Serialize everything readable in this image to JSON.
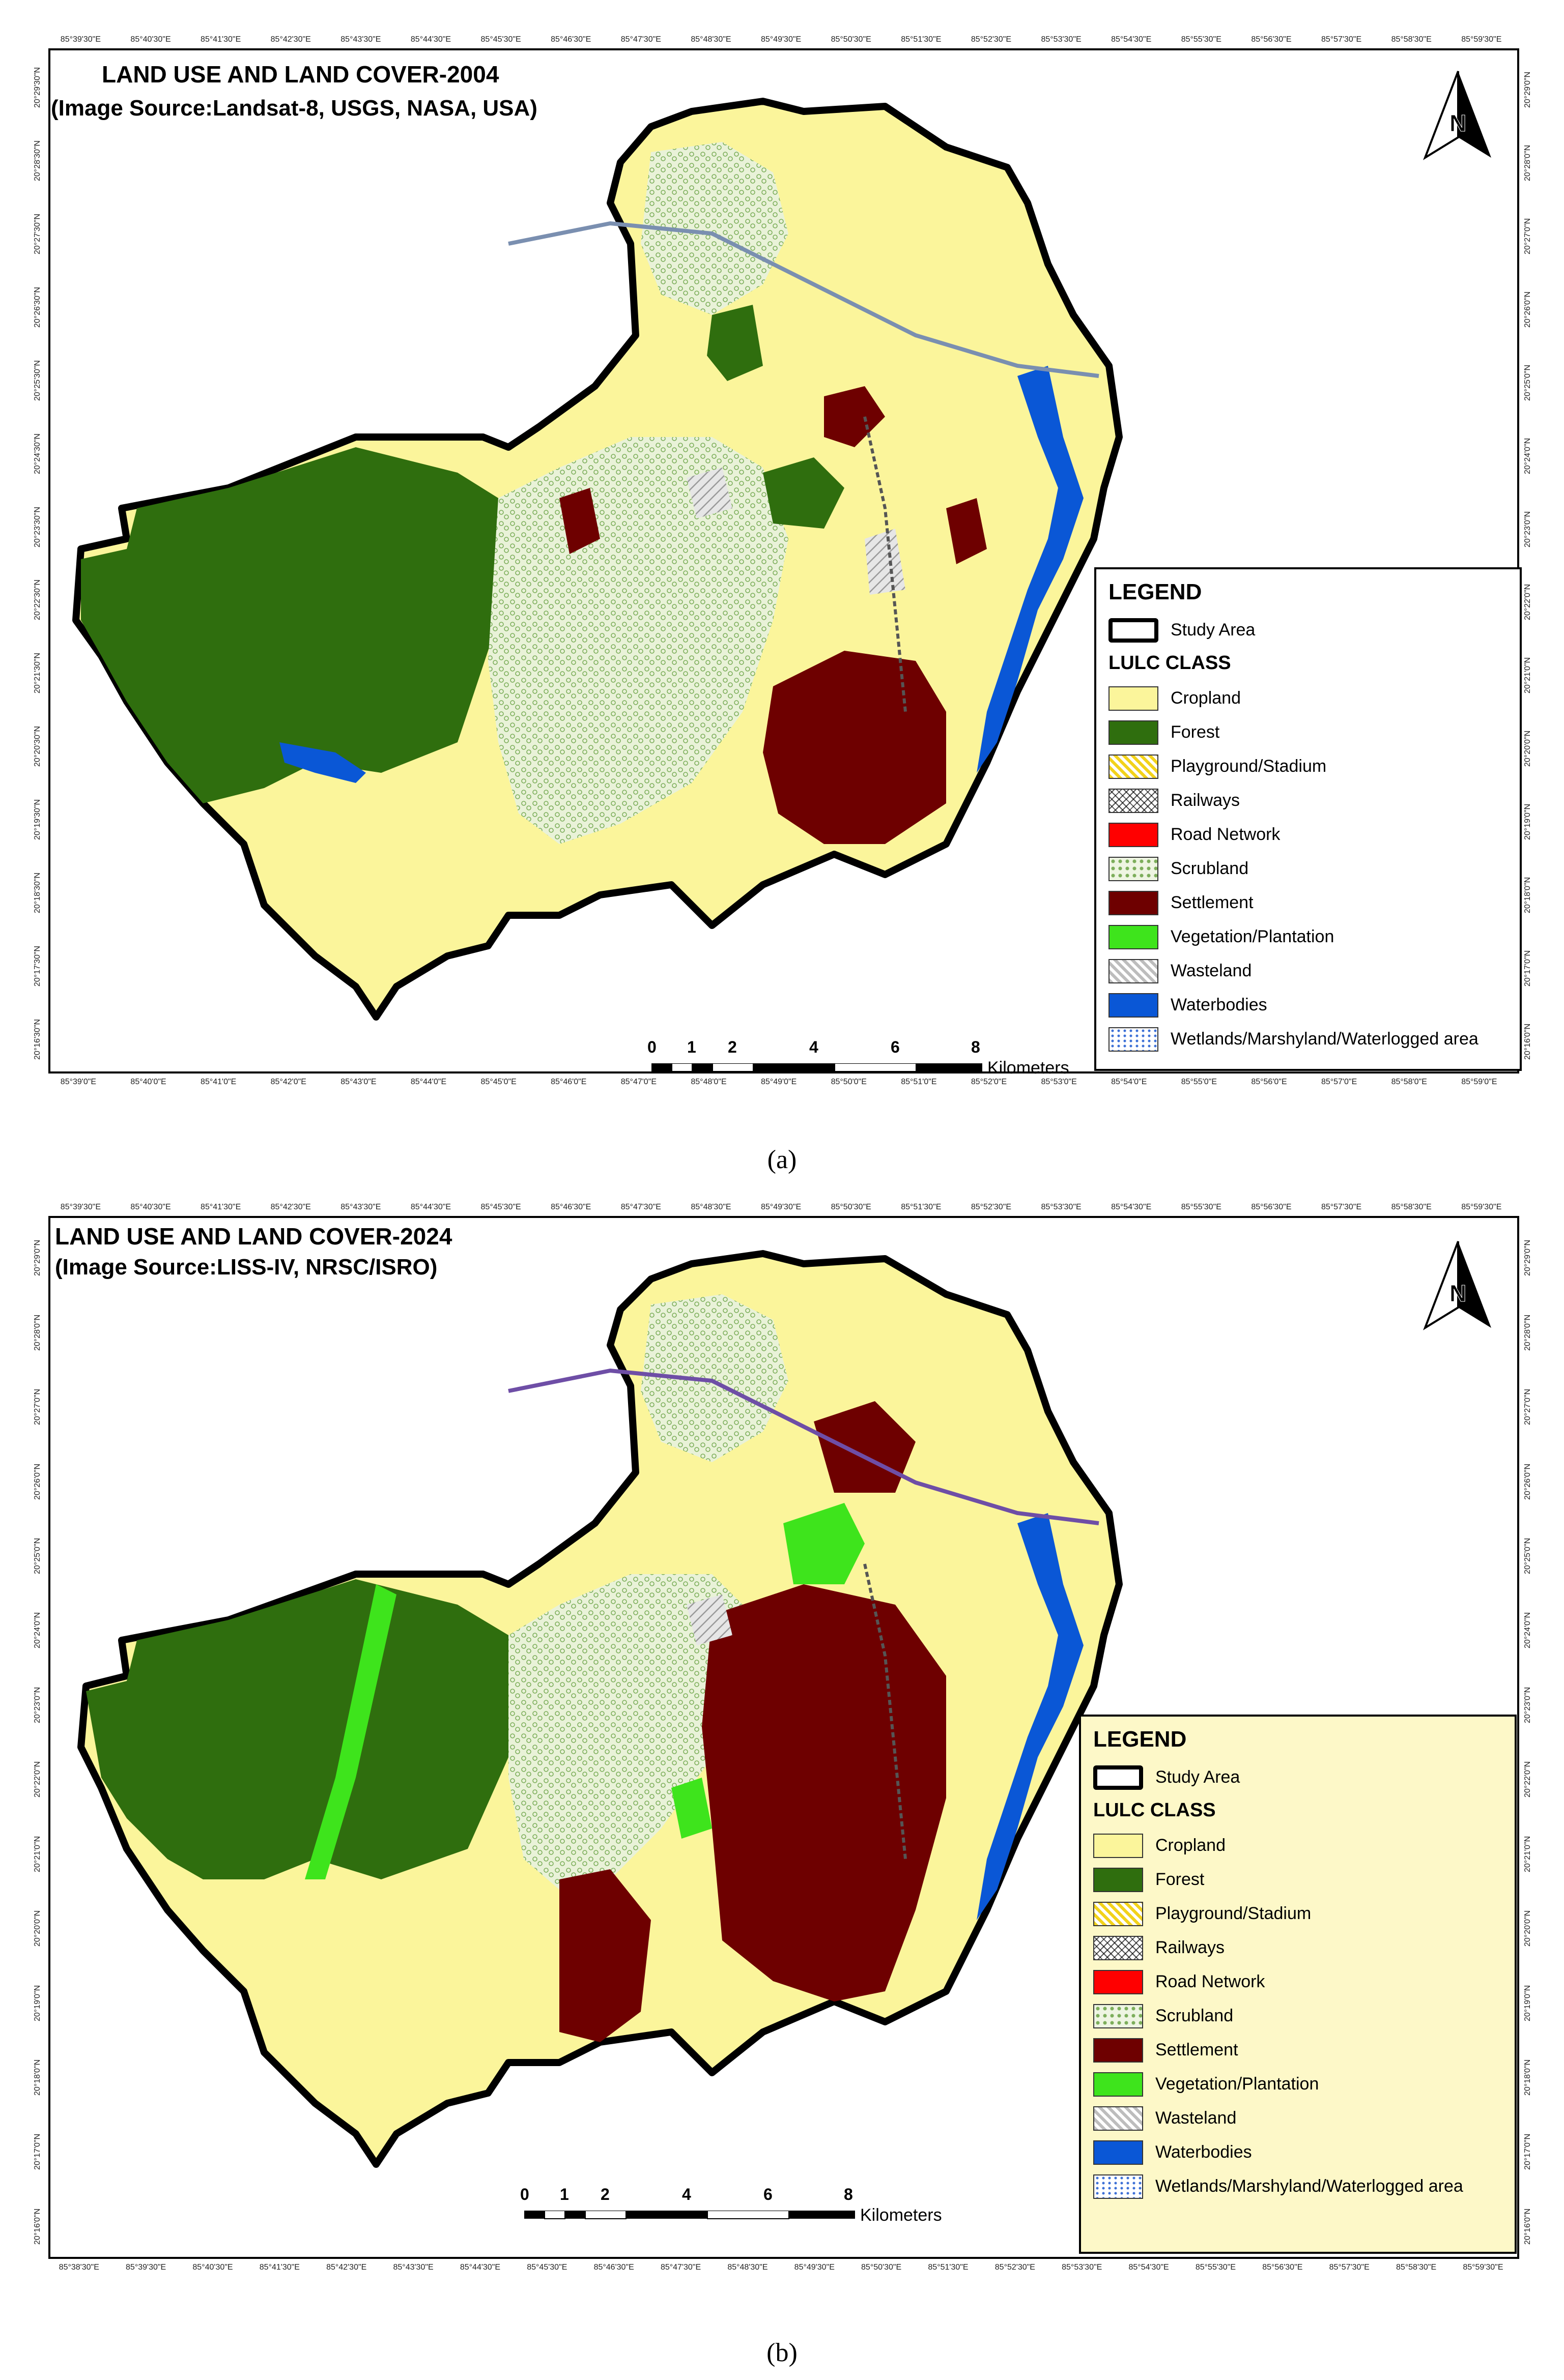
{
  "panels": [
    {
      "title": "LAND USE AND LAND COVER-2004",
      "subtitle": "(Image Source:Landsat-8, USGS, NASA, USA)",
      "caption": "(a)",
      "top_ticks": [
        "85°39'30\"E",
        "85°40'30\"E",
        "85°41'30\"E",
        "85°42'30\"E",
        "85°43'30\"E",
        "85°44'30\"E",
        "85°45'30\"E",
        "85°46'30\"E",
        "85°47'30\"E",
        "85°48'30\"E",
        "85°49'30\"E",
        "85°50'30\"E",
        "85°51'30\"E",
        "85°52'30\"E",
        "85°53'30\"E",
        "85°54'30\"E",
        "85°55'30\"E",
        "85°56'30\"E",
        "85°57'30\"E",
        "85°58'30\"E",
        "85°59'30\"E"
      ],
      "bottom_ticks": [
        "85°39'0\"E",
        "85°40'0\"E",
        "85°41'0\"E",
        "85°42'0\"E",
        "85°43'0\"E",
        "85°44'0\"E",
        "85°45'0\"E",
        "85°46'0\"E",
        "85°47'0\"E",
        "85°48'0\"E",
        "85°49'0\"E",
        "85°50'0\"E",
        "85°51'0\"E",
        "85°52'0\"E",
        "85°53'0\"E",
        "85°54'0\"E",
        "85°55'0\"E",
        "85°56'0\"E",
        "85°57'0\"E",
        "85°58'0\"E",
        "85°59'0\"E"
      ],
      "left_ticks": [
        "20°29'30\"N",
        "20°28'30\"N",
        "20°27'30\"N",
        "20°26'30\"N",
        "20°25'30\"N",
        "20°24'30\"N",
        "20°23'30\"N",
        "20°22'30\"N",
        "20°21'30\"N",
        "20°20'30\"N",
        "20°19'30\"N",
        "20°18'30\"N",
        "20°17'30\"N",
        "20°16'30\"N"
      ],
      "right_ticks": [
        "20°29'0\"N",
        "20°28'0\"N",
        "20°27'0\"N",
        "20°26'0\"N",
        "20°25'0\"N",
        "20°24'0\"N",
        "20°23'0\"N",
        "20°22'0\"N",
        "20°21'0\"N",
        "20°20'0\"N",
        "20°19'0\"N",
        "20°18'0\"N",
        "20°17'0\"N",
        "20°16'0\"N"
      ],
      "scale_labels": [
        "0",
        "1",
        "2",
        "4",
        "6",
        "8"
      ],
      "scale_unit": "Kilometers",
      "legend_background": "#ffffff"
    },
    {
      "title": "LAND USE AND LAND COVER-2024",
      "subtitle": "(Image Source:LISS-IV, NRSC/ISRO)",
      "caption": "(b)",
      "top_ticks": [
        "85°39'30\"E",
        "85°40'30\"E",
        "85°41'30\"E",
        "85°42'30\"E",
        "85°43'30\"E",
        "85°44'30\"E",
        "85°45'30\"E",
        "85°46'30\"E",
        "85°47'30\"E",
        "85°48'30\"E",
        "85°49'30\"E",
        "85°50'30\"E",
        "85°51'30\"E",
        "85°52'30\"E",
        "85°53'30\"E",
        "85°54'30\"E",
        "85°55'30\"E",
        "85°56'30\"E",
        "85°57'30\"E",
        "85°58'30\"E",
        "85°59'30\"E"
      ],
      "bottom_ticks": [
        "85°38'30\"E",
        "85°39'30\"E",
        "85°40'30\"E",
        "85°41'30\"E",
        "85°42'30\"E",
        "85°43'30\"E",
        "85°44'30\"E",
        "85°45'30\"E",
        "85°46'30\"E",
        "85°47'30\"E",
        "85°48'30\"E",
        "85°49'30\"E",
        "85°50'30\"E",
        "85°51'30\"E",
        "85°52'30\"E",
        "85°53'30\"E",
        "85°54'30\"E",
        "85°55'30\"E",
        "85°56'30\"E",
        "85°57'30\"E",
        "85°58'30\"E",
        "85°59'30\"E"
      ],
      "left_ticks": [
        "20°29'0\"N",
        "20°28'0\"N",
        "20°27'0\"N",
        "20°26'0\"N",
        "20°25'0\"N",
        "20°24'0\"N",
        "20°23'0\"N",
        "20°22'0\"N",
        "20°21'0\"N",
        "20°20'0\"N",
        "20°19'0\"N",
        "20°18'0\"N",
        "20°17'0\"N",
        "20°16'0\"N"
      ],
      "right_ticks": [
        "20°29'0\"N",
        "20°28'0\"N",
        "20°27'0\"N",
        "20°26'0\"N",
        "20°25'0\"N",
        "20°24'0\"N",
        "20°23'0\"N",
        "20°22'0\"N",
        "20°21'0\"N",
        "20°20'0\"N",
        "20°19'0\"N",
        "20°18'0\"N",
        "20°17'0\"N",
        "20°16'0\"N"
      ],
      "scale_labels": [
        "0",
        "1",
        "2",
        "4",
        "6",
        "8"
      ],
      "scale_unit": "Kilometers",
      "legend_background": "#fdf8c8"
    }
  ],
  "legend": {
    "heading": "LEGEND",
    "study_area": "Study Area",
    "class_heading": "LULC CLASS",
    "classes": [
      {
        "label": "Cropland",
        "color": "#fbf59b",
        "pattern": "solid"
      },
      {
        "label": "Forest",
        "color": "#2f6e0e",
        "pattern": "solid"
      },
      {
        "label": "Playground/Stadium",
        "color": "#f2d21a",
        "pattern": "hatch"
      },
      {
        "label": "Railways",
        "color": "#555555",
        "pattern": "crosshatch"
      },
      {
        "label": "Road Network",
        "color": "#ff0000",
        "pattern": "solid"
      },
      {
        "label": "Scrubland",
        "color": "#7cae5a",
        "pattern": "dots"
      },
      {
        "label": "Settlement",
        "color": "#6e0000",
        "pattern": "solid"
      },
      {
        "label": "Vegetation/Plantation",
        "color": "#3ee41c",
        "pattern": "solid"
      },
      {
        "label": "Wasteland",
        "color": "#bdbdbd",
        "pattern": "hatch"
      },
      {
        "label": "Waterbodies",
        "color": "#0a57d6",
        "pattern": "solid"
      },
      {
        "label": "Wetlands/Marshyland/Waterlogged area",
        "color": "#3b6fd6",
        "pattern": "wetland"
      }
    ]
  },
  "north_arrow": {
    "label": "N"
  }
}
